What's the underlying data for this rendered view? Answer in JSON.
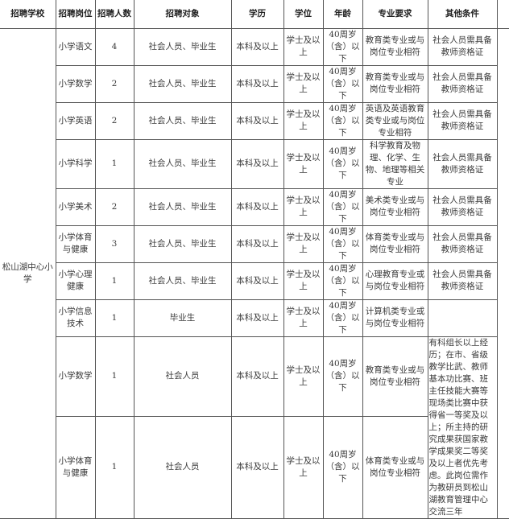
{
  "headers": [
    "招聘学校",
    "招聘岗位",
    "招聘人数",
    "招聘对象",
    "学历",
    "学位",
    "年龄",
    "专业要求",
    "其他条件"
  ],
  "school": "松山湖中心小学",
  "rows": [
    {
      "post": "小学语文",
      "count": "4",
      "target": "社会人员、毕业生",
      "edu": "本科及以上",
      "degree": "学士及以上",
      "age": "40周岁（含）以下",
      "major": "教育类专业或与岗位专业相符",
      "other": "社会人员需具备教师资格证"
    },
    {
      "post": "小学数学",
      "count": "2",
      "target": "社会人员、毕业生",
      "edu": "本科及以上",
      "degree": "学士及以上",
      "age": "40周岁（含）以下",
      "major": "教育类专业或与岗位专业相符",
      "other": "社会人员需具备教师资格证"
    },
    {
      "post": "小学英语",
      "count": "2",
      "target": "社会人员、毕业生",
      "edu": "本科及以上",
      "degree": "学士及以上",
      "age": "40周岁（含）以下",
      "major": "英语及英语教育类专业或与岗位专业相符",
      "other": "社会人员需具备教师资格证"
    },
    {
      "post": "小学科学",
      "count": "1",
      "target": "社会人员、毕业生",
      "edu": "本科及以上",
      "degree": "学士及以上",
      "age": "40周岁（含）以下",
      "major": "科学教育及物理、化学、生物、地理等相关专业",
      "other": "社会人员需具备教师资格证"
    },
    {
      "post": "小学美术",
      "count": "2",
      "target": "社会人员、毕业生",
      "edu": "本科及以上",
      "degree": "学士及以上",
      "age": "40周岁（含）以下",
      "major": "美术类专业或与岗位专业相符",
      "other": "社会人员需具备教师资格证"
    },
    {
      "post": "小学体育与健康",
      "count": "3",
      "target": "社会人员、毕业生",
      "edu": "本科及以上",
      "degree": "学士及以上",
      "age": "40周岁（含）以下",
      "major": "体育类专业或与岗位专业相符",
      "other": "社会人员需具备教师资格证"
    },
    {
      "post": "小学心理健康",
      "count": "1",
      "target": "社会人员、毕业生",
      "edu": "本科及以上",
      "degree": "学士及以上",
      "age": "40周岁（含）以下",
      "major": "心理教育专业或与岗位专业相符",
      "other": "社会人员需具备教师资格证"
    },
    {
      "post": "小学信息技术",
      "count": "1",
      "target": "毕业生",
      "edu": "本科及以上",
      "degree": "学士及以上",
      "age": "40周岁（含）以下",
      "major": "计算机类专业或与岗位专业相符",
      "other": ""
    },
    {
      "post": "小学数学",
      "count": "1",
      "target": "社会人员",
      "edu": "本科及以上",
      "degree": "学士及以上",
      "age": "40周岁（含）以下",
      "major": "教育类专业或与岗位专业相符"
    },
    {
      "post": "小学体育与健康",
      "count": "1",
      "target": "社会人员",
      "edu": "本科及以上",
      "degree": "学士及以上",
      "age": "40周岁（含）以下",
      "major": "体育类专业或与岗位专业相符"
    }
  ],
  "merged_other": "有科组长以上经历；在市、省级教学比武、教师基本功比赛、班主任技能大赛等现场类比赛中获得省一等奖及以上；所主持的研究成果获国家教学成果奖二等奖及以上者优先考虑。此岗位需作为教研员到松山湖教育管理中心交流三年"
}
